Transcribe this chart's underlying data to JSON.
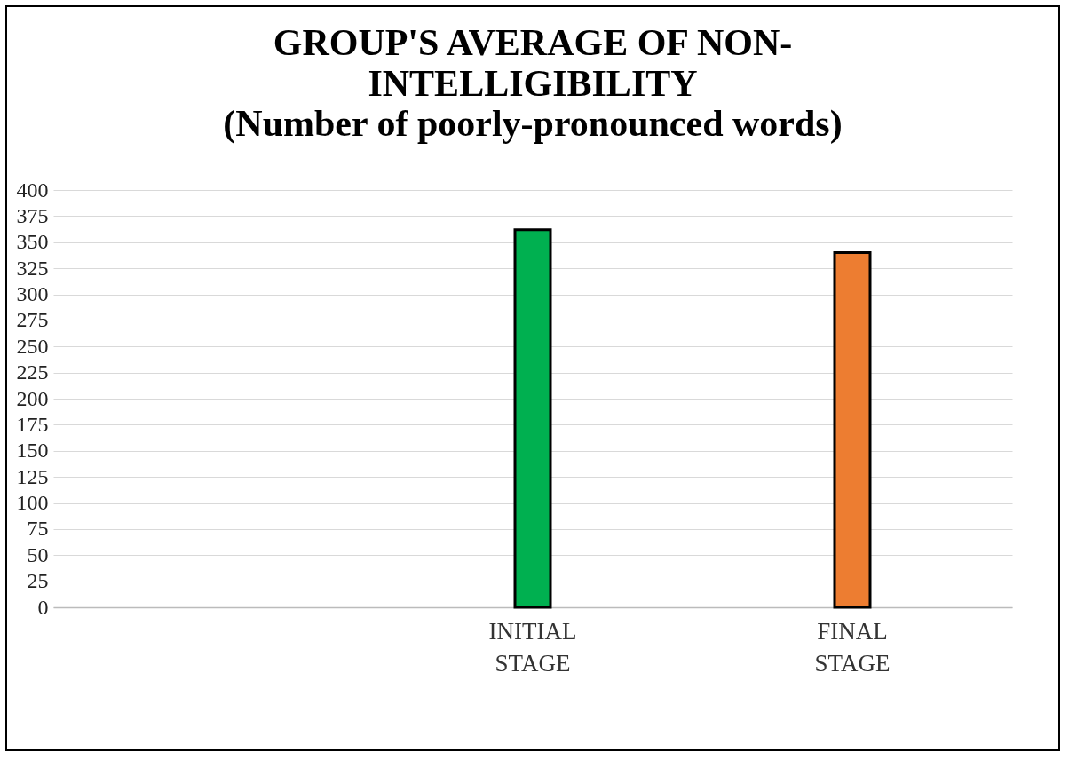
{
  "chart_data": {
    "type": "bar",
    "title": "GROUP'S AVERAGE OF NON-INTELLIGIBILITY",
    "subtitle": "(Number of poorly-pronounced words)",
    "categories": [
      null,
      "INITIAL STAGE",
      "FINAL STAGE"
    ],
    "values": [
      null,
      362,
      340
    ],
    "colors": [
      "#00b050",
      "#00b050",
      "#ed7d31"
    ],
    "ylim": [
      0,
      400
    ],
    "yticks": [
      0,
      25,
      50,
      75,
      100,
      125,
      150,
      175,
      200,
      225,
      250,
      275,
      300,
      325,
      350,
      375,
      400
    ],
    "grid": "y"
  }
}
